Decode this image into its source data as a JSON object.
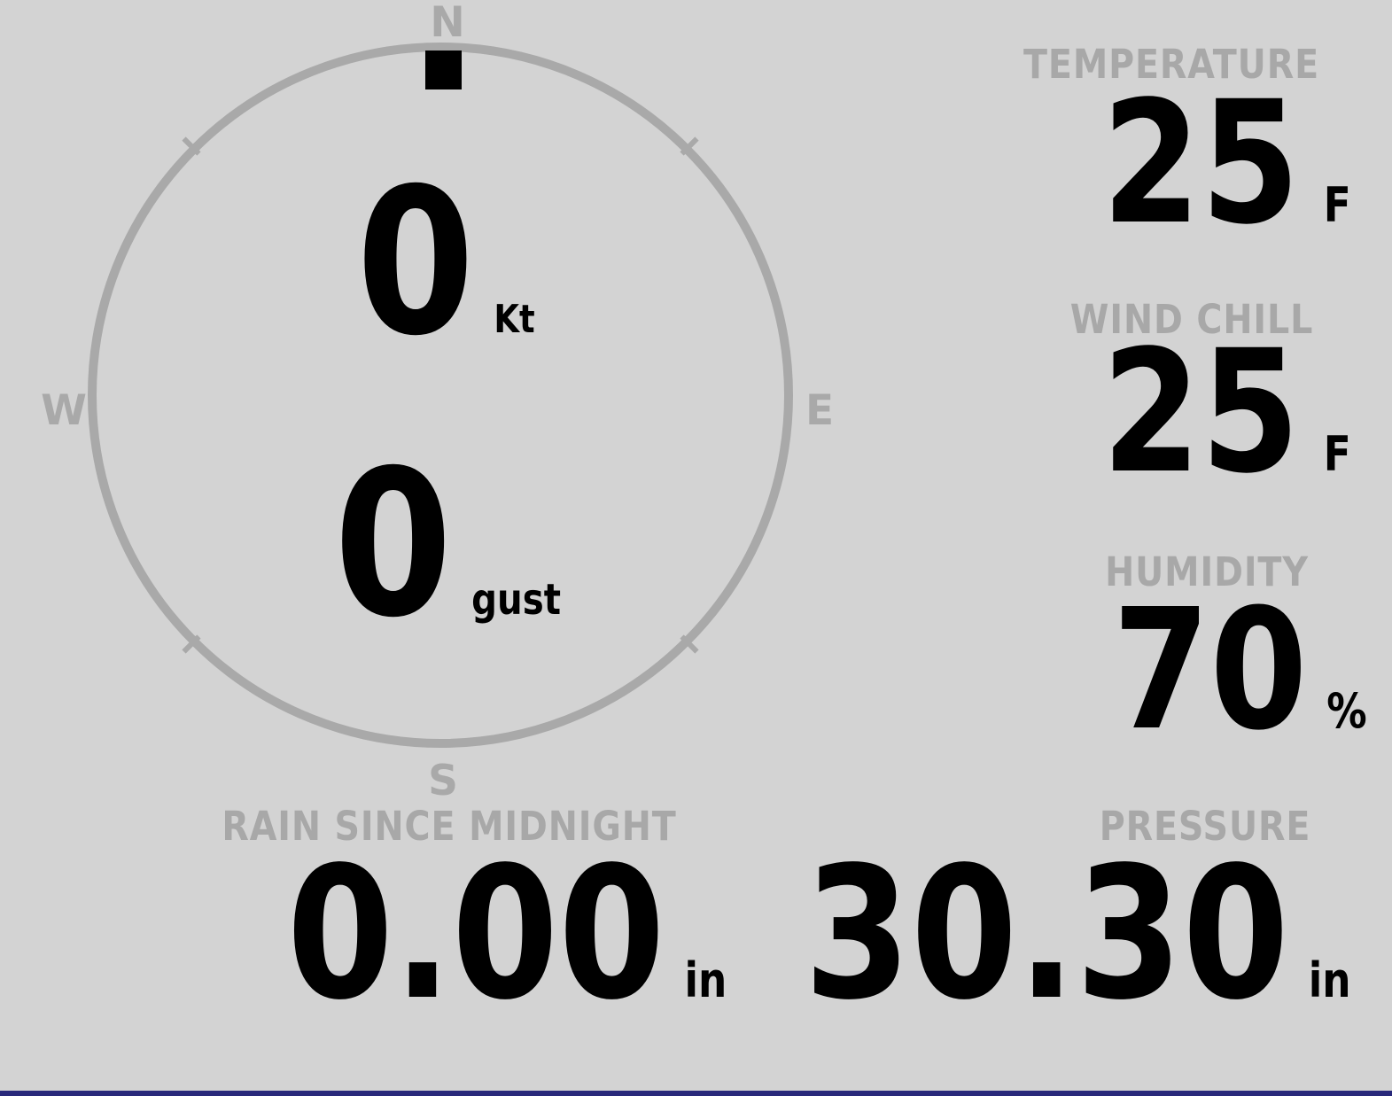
{
  "display": {
    "background_color": "#d3d3d3",
    "label_color": "#a8a8a8",
    "value_color": "#000000",
    "ring_color": "#a9a9a9",
    "bottom_bar_color": "#28287a"
  },
  "compass": {
    "cardinals": {
      "n": "N",
      "e": "E",
      "s": "S",
      "w": "W"
    },
    "marker": {
      "direction": "N",
      "color": "#000000"
    },
    "speed": {
      "value": "0",
      "unit": "Kt"
    },
    "gust": {
      "value": "0",
      "unit": "gust"
    }
  },
  "metrics": {
    "temperature": {
      "label": "TEMPERATURE",
      "value": "25",
      "unit": "F"
    },
    "wind_chill": {
      "label": "WIND CHILL",
      "value": "25",
      "unit": "F"
    },
    "humidity": {
      "label": "HUMIDITY",
      "value": "70",
      "unit": "%"
    },
    "rain": {
      "label": "RAIN SINCE MIDNIGHT",
      "value": "0.00",
      "unit": "in"
    },
    "pressure": {
      "label": "PRESSURE",
      "value": "30.30",
      "unit": "in"
    }
  }
}
